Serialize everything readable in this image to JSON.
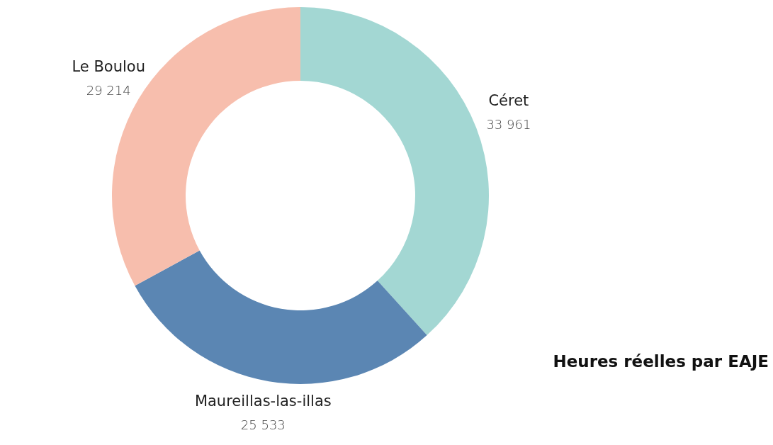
{
  "chart_data": {
    "type": "donut",
    "title": "Heures réelles par EAJE",
    "categories": [
      "Céret",
      "Maureillas-las-illas",
      "Le Boulou"
    ],
    "values": [
      33961,
      25533,
      29214
    ],
    "value_labels": [
      "33 961",
      "25 533",
      "29 214"
    ],
    "colors": [
      "#a3d7d3",
      "#5b86b3",
      "#f7bead"
    ]
  }
}
